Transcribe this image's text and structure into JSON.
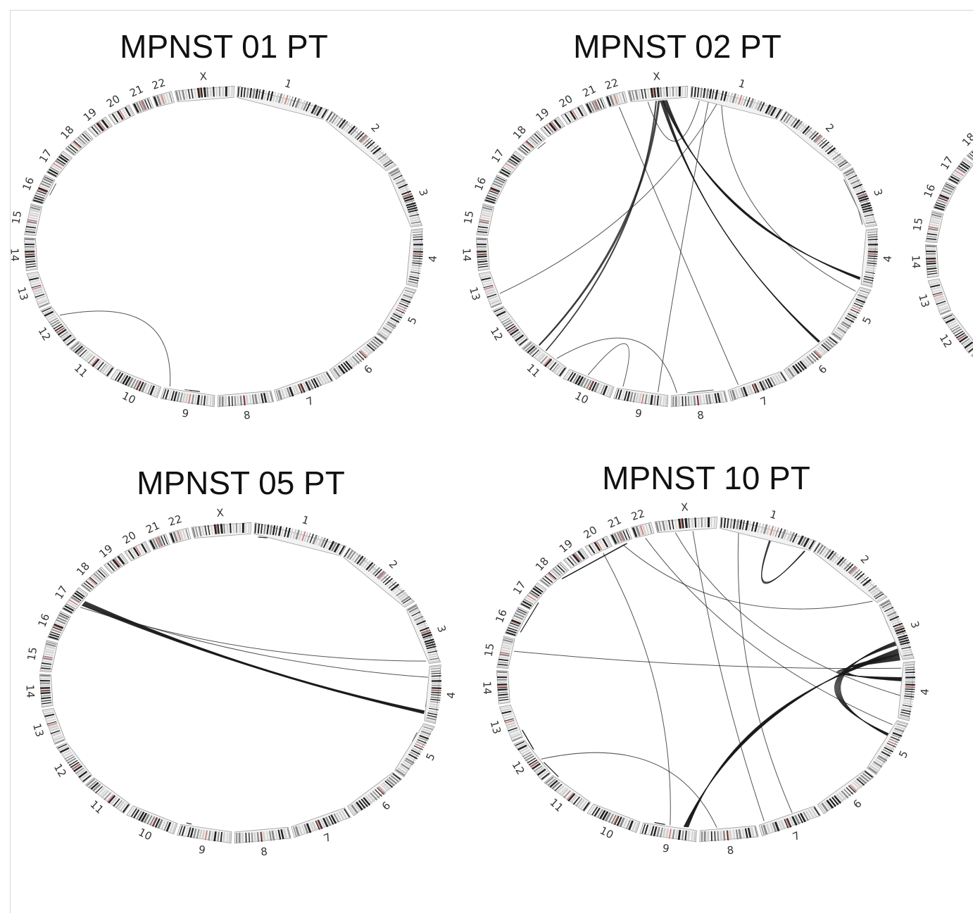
{
  "figure": {
    "chromosomes": [
      "1",
      "2",
      "3",
      "4",
      "5",
      "6",
      "7",
      "8",
      "9",
      "10",
      "11",
      "12",
      "13",
      "14",
      "15",
      "16",
      "17",
      "18",
      "19",
      "20",
      "21",
      "22",
      "X"
    ],
    "chromosome_relative_sizes": [
      249,
      243,
      198,
      191,
      181,
      171,
      159,
      146,
      141,
      136,
      135,
      134,
      115,
      107,
      102,
      90,
      81,
      78,
      59,
      63,
      48,
      51,
      155
    ],
    "colors": {
      "link": "#1a1a1a",
      "band_dark": "#222222",
      "band_mid": "#888888",
      "band_light": "#cfcfcf",
      "centromere": "#d9534f",
      "ideogram_bg": "#f2f2f2"
    },
    "panels": [
      {
        "title": "MPNST 01 PT",
        "links": [
          {
            "a": [
              "16",
              0.4
            ],
            "b": [
              "16",
              0.9
            ],
            "weight": 1,
            "straight": true
          },
          {
            "a": [
              "12",
              0.7
            ],
            "b": [
              "9",
              0.9
            ],
            "weight": 1
          },
          {
            "a": [
              "9",
              0.3
            ],
            "b": [
              "9",
              0.5
            ],
            "weight": 2,
            "straight": true
          },
          {
            "a": [
              "9",
              0.45
            ],
            "b": [
              "9",
              0.6
            ],
            "weight": 1,
            "straight": true
          }
        ]
      },
      {
        "title": "MPNST 02 PT",
        "links": [
          {
            "a": [
              "X",
              0.6
            ],
            "b": [
              "4",
              0.9
            ],
            "weight": 8
          },
          {
            "a": [
              "X",
              0.55
            ],
            "b": [
              "6",
              0.2
            ],
            "weight": 6
          },
          {
            "a": [
              "X",
              0.5
            ],
            "b": [
              "11",
              0.8
            ],
            "weight": 3
          },
          {
            "a": [
              "X",
              0.45
            ],
            "b": [
              "11",
              0.6
            ],
            "weight": 2
          },
          {
            "a": [
              "18",
              0.5
            ],
            "b": [
              "18",
              0.9
            ],
            "weight": 1,
            "straight": true
          },
          {
            "a": [
              "3",
              0.1
            ],
            "b": [
              "3",
              0.7
            ],
            "weight": 1,
            "straight": true
          },
          {
            "a": [
              "3",
              0.6
            ],
            "b": [
              "3",
              0.95
            ],
            "weight": 1,
            "straight": true
          },
          {
            "a": [
              "1",
              0.2
            ],
            "b": [
              "9",
              0.2
            ],
            "weight": 1
          },
          {
            "a": [
              "1",
              0.3
            ],
            "b": [
              "13",
              0.3
            ],
            "weight": 1
          },
          {
            "a": [
              "1",
              0.35
            ],
            "b": [
              "5",
              0.1
            ],
            "weight": 1
          },
          {
            "a": [
              "22",
              0.5
            ],
            "b": [
              "7",
              0.8
            ],
            "weight": 1
          },
          {
            "a": [
              "X",
              0.3
            ],
            "b": [
              "1",
              0.1
            ],
            "weight": 1
          },
          {
            "a": [
              "11",
              0.3
            ],
            "b": [
              "8",
              0.9
            ],
            "weight": 1
          },
          {
            "a": [
              "8",
              0.2
            ],
            "b": [
              "8",
              0.7
            ],
            "weight": 1,
            "straight": true
          },
          {
            "a": [
              "10",
              0.6
            ],
            "b": [
              "9",
              0.9
            ],
            "weight": 1
          }
        ]
      },
      {
        "title": "MPNST 05 PT",
        "links": [
          {
            "a": [
              "17",
              0.6
            ],
            "b": [
              "4",
              0.85
            ],
            "weight": 10
          },
          {
            "a": [
              "17",
              0.4
            ],
            "b": [
              "3",
              0.95
            ],
            "weight": 1
          },
          {
            "a": [
              "17",
              0.5
            ],
            "b": [
              "4",
              0.2
            ],
            "weight": 1
          },
          {
            "a": [
              "4",
              0.5
            ],
            "b": [
              "4",
              0.75
            ],
            "weight": 1,
            "straight": true
          },
          {
            "a": [
              "5",
              0.2
            ],
            "b": [
              "5",
              0.4
            ],
            "weight": 1,
            "straight": true
          },
          {
            "a": [
              "1",
              0.05
            ],
            "b": [
              "1",
              0.15
            ],
            "weight": 2,
            "straight": true
          },
          {
            "a": [
              "9",
              0.8
            ],
            "b": [
              "9",
              0.9
            ],
            "weight": 2,
            "straight": true
          }
        ]
      },
      {
        "title": "MPNST 10 PT",
        "links": [
          {
            "a": [
              "3",
              0.85
            ],
            "b": [
              "9",
              0.2
            ],
            "weight": 12
          },
          {
            "a": [
              "3",
              0.95
            ],
            "b": [
              "4",
              0.3
            ],
            "weight": 12
          },
          {
            "a": [
              "3",
              0.7
            ],
            "b": [
              "5",
              0.3
            ],
            "weight": 8
          },
          {
            "a": [
              "3",
              0.6
            ],
            "b": [
              "3",
              0.3
            ],
            "weight": 6,
            "straight": true
          },
          {
            "a": [
              "21",
              0.6
            ],
            "b": [
              "18",
              0.6
            ],
            "weight": 4,
            "straight": true
          },
          {
            "a": [
              "17",
              0.4
            ],
            "b": [
              "16",
              0.2
            ],
            "weight": 2,
            "straight": true
          },
          {
            "a": [
              "12",
              0.7
            ],
            "b": [
              "13",
              0.2
            ],
            "weight": 3,
            "straight": true
          },
          {
            "a": [
              "11",
              0.9
            ],
            "b": [
              "12",
              0.3
            ],
            "weight": 2,
            "straight": true
          },
          {
            "a": [
              "1",
              0.55
            ],
            "b": [
              "1",
              0.95
            ],
            "weight": 3
          },
          {
            "a": [
              "22",
              0.5
            ],
            "b": [
              "5",
              0.1
            ],
            "weight": 1
          },
          {
            "a": [
              "X",
              0.3
            ],
            "b": [
              "4",
              0.6
            ],
            "weight": 1
          },
          {
            "a": [
              "X",
              0.6
            ],
            "b": [
              "7",
              0.9
            ],
            "weight": 1
          },
          {
            "a": [
              "1",
              0.2
            ],
            "b": [
              "7",
              0.4
            ],
            "weight": 1
          },
          {
            "a": [
              "15",
              0.6
            ],
            "b": [
              "4",
              0.1
            ],
            "weight": 1
          },
          {
            "a": [
              "12",
              0.4
            ],
            "b": [
              "8",
              0.7
            ],
            "weight": 1
          },
          {
            "a": [
              "20",
              0.5
            ],
            "b": [
              "9",
              0.5
            ],
            "weight": 1
          },
          {
            "a": [
              "21",
              0.4
            ],
            "b": [
              "2",
              0.95
            ],
            "weight": 1
          },
          {
            "a": [
              "9",
              0.6
            ],
            "b": [
              "9",
              0.8
            ],
            "weight": 2,
            "straight": true
          }
        ]
      },
      {
        "title": "",
        "links": []
      }
    ]
  }
}
